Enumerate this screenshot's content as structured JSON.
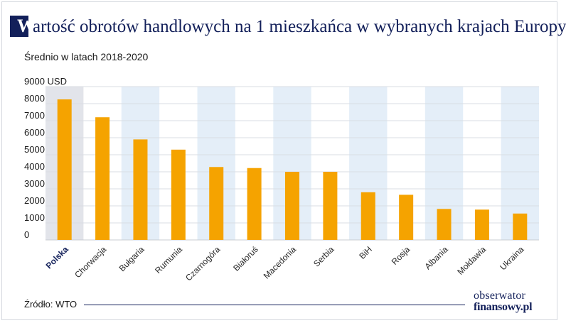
{
  "title": {
    "first_letter": "W",
    "rest": "artość obrotów handlowych na 1 mieszkańca w wybranych krajach Europy"
  },
  "subtitle": "Średnio w latach 2018-2020",
  "chart_data": {
    "type": "bar",
    "unit_label": "9000 USD",
    "ylim": [
      0,
      9000
    ],
    "yticks": [
      0,
      1000,
      2000,
      3000,
      4000,
      5000,
      6000,
      7000,
      8000,
      9000
    ],
    "ytick_labels": [
      "0",
      "1000",
      "2000",
      "3000",
      "4000",
      "5000",
      "6000",
      "7000",
      "8000",
      "9000 USD"
    ],
    "categories": [
      "Polska",
      "Chorwacja",
      "Bułgaria",
      "Rumunia",
      "Czarnogóra",
      "Białoruś",
      "Macedonia",
      "Serbia",
      "BiH",
      "Rosja",
      "Albania",
      "Mołdawia",
      "Ukraina"
    ],
    "values": [
      8250,
      7200,
      5900,
      5300,
      4280,
      4220,
      4000,
      4000,
      2800,
      2650,
      1820,
      1780,
      1550
    ],
    "highlight_category": "Polska",
    "grid": true
  },
  "colors": {
    "bar": "#f5a300",
    "title": "#13205a",
    "band_light": "#e4eef8",
    "band_highlight": "#e2e4ea",
    "grid": "#ffffff"
  },
  "footer": {
    "source": "Źródło: WTO",
    "logo_line1": "obserwator",
    "logo_line2": "finansowy.pl"
  }
}
